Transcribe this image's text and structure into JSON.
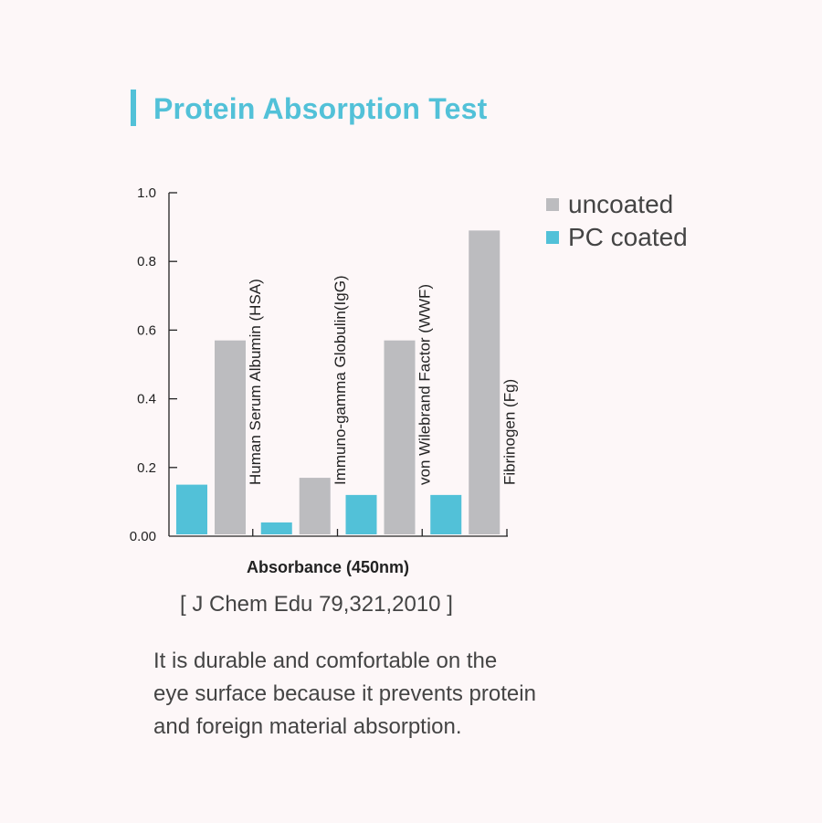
{
  "header": {
    "title": "Protein Absorption Test"
  },
  "chart_data": {
    "type": "bar",
    "categories": [
      "Human Serum Albumin (HSA)",
      "Immuno-gamma Globulin(IgG)",
      "von Wilebrand Factor (WWF)",
      "Fibrinogen (Fg)"
    ],
    "series": [
      {
        "name": "PC coated",
        "color": "#52c1d8",
        "values": [
          0.15,
          0.04,
          0.12,
          0.12
        ]
      },
      {
        "name": "uncoated",
        "color": "#bcbcbf",
        "values": [
          0.57,
          0.17,
          0.57,
          0.89
        ]
      }
    ],
    "y_ticks": [
      "0.00",
      "0.2",
      "0.4",
      "0.6",
      "0.8",
      "1.0"
    ],
    "ylim": [
      0,
      1.0
    ],
    "xlabel": "Absorbance (450nm)",
    "legend_position": "top-right",
    "grid": false
  },
  "legend": [
    {
      "label": "uncoated",
      "color": "#bcbcbf"
    },
    {
      "label": "PC coated",
      "color": "#52c1d8"
    }
  ],
  "citation": "[ J Chem Edu 79,321,2010 ]",
  "description": {
    "lines": [
      "It is durable and comfortable on the",
      "eye surface because it prevents protein",
      "and foreign material absorption."
    ]
  }
}
